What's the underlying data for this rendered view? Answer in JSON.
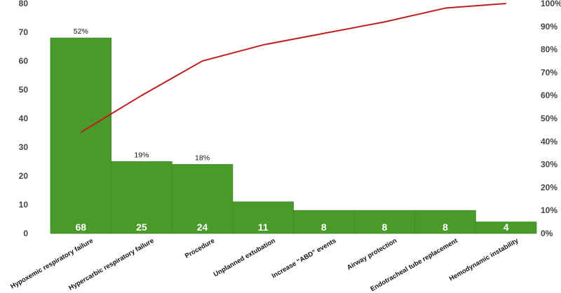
{
  "chart_data": {
    "type": "bar",
    "categories": [
      "Hypoxemic respiratory failure",
      "Hypercarbic respiratory failure",
      "Procedure",
      "Unplanned extubation",
      "Increase “ABD” events",
      "Airway protection",
      "Endotracheal tube replacement",
      "Hemodynamic instability"
    ],
    "values": [
      68,
      25,
      24,
      11,
      8,
      8,
      8,
      4
    ],
    "bar_labels": [
      "68",
      "25",
      "24",
      "11",
      "8",
      "8",
      "8",
      "4"
    ],
    "percent_labels": [
      "52%",
      "19%",
      "18%",
      "",
      "",
      "",
      "",
      ""
    ],
    "cumulative_percent": [
      44,
      60,
      75,
      82,
      87,
      92,
      98,
      100
    ],
    "ylim": [
      0,
      80
    ],
    "y_ticks": [
      "0",
      "10",
      "20",
      "30",
      "40",
      "50",
      "60",
      "70",
      "80"
    ],
    "y2lim": [
      0,
      100
    ],
    "y2_ticks": [
      "0%",
      "10%",
      "20%",
      "30%",
      "40%",
      "50%",
      "60%",
      "70%",
      "80%",
      "90%",
      "100%"
    ],
    "colors": {
      "bar": "#4a9a2a",
      "bar_edge": "#3c8a22",
      "line": "#c01e1e"
    },
    "grid": false
  }
}
